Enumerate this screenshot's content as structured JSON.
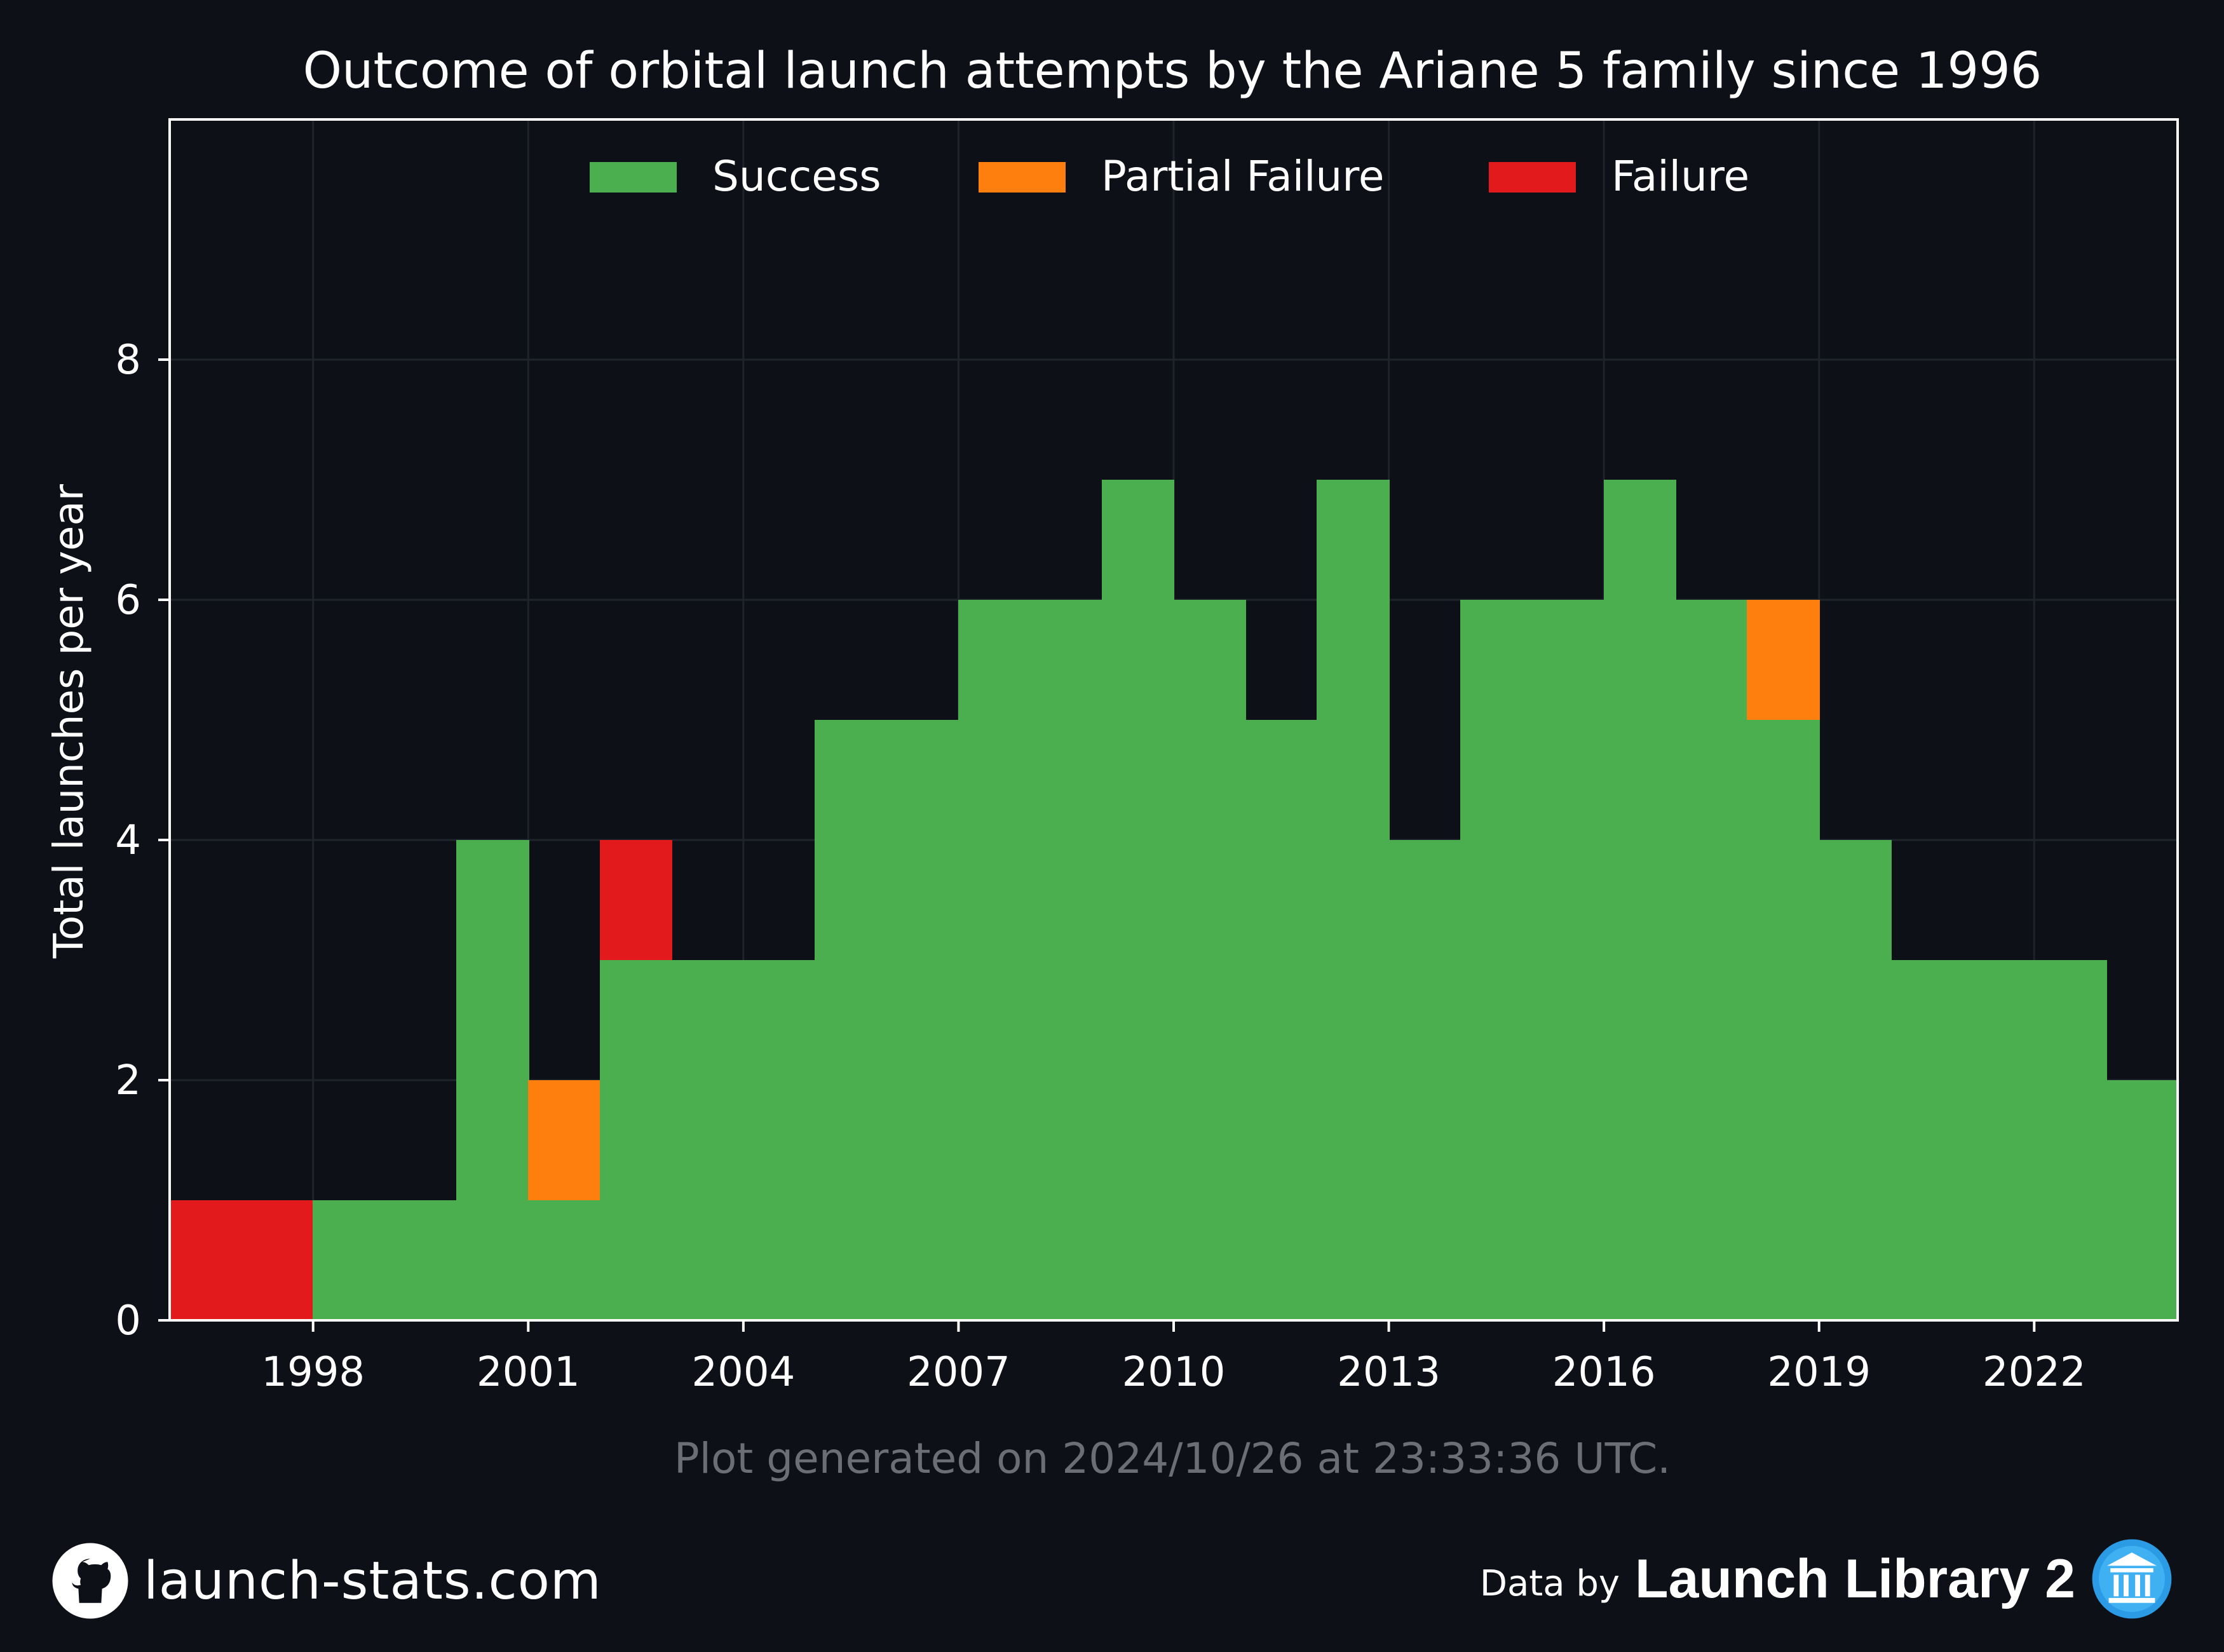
{
  "chart_data": {
    "type": "bar",
    "title": "Outcome of orbital launch attempts by the Ariane 5 family since 1996",
    "xlabel": "",
    "ylabel": "Total launches per year",
    "categories": [
      1996,
      1997,
      1998,
      1999,
      2000,
      2001,
      2002,
      2003,
      2004,
      2005,
      2006,
      2007,
      2008,
      2009,
      2010,
      2011,
      2012,
      2013,
      2014,
      2015,
      2016,
      2017,
      2018,
      2019,
      2020,
      2021,
      2022,
      2023
    ],
    "series": [
      {
        "name": "Success",
        "color": "#4caf4f",
        "values": [
          0,
          0,
          1,
          1,
          4,
          1,
          3,
          3,
          3,
          5,
          5,
          6,
          6,
          7,
          6,
          5,
          7,
          4,
          6,
          6,
          7,
          6,
          5,
          4,
          3,
          3,
          3,
          2
        ]
      },
      {
        "name": "Partial Failure",
        "color": "#ff7f0e",
        "values": [
          0,
          0,
          0,
          0,
          0,
          1,
          0,
          0,
          0,
          0,
          0,
          0,
          0,
          0,
          0,
          0,
          0,
          0,
          0,
          0,
          0,
          0,
          1,
          0,
          0,
          0,
          0,
          0
        ]
      },
      {
        "name": "Failure",
        "color": "#e31a1c",
        "values": [
          1,
          1,
          0,
          0,
          0,
          0,
          1,
          0,
          0,
          0,
          0,
          0,
          0,
          0,
          0,
          0,
          0,
          0,
          0,
          0,
          0,
          0,
          0,
          0,
          0,
          0,
          0,
          0
        ]
      }
    ],
    "stacked": true,
    "xlim": [
      1996,
      2024
    ],
    "ylim": [
      0,
      10
    ],
    "x_ticks": [
      1998,
      2001,
      2004,
      2007,
      2010,
      2013,
      2016,
      2019,
      2022
    ],
    "y_ticks": [
      0,
      2,
      4,
      6,
      8
    ],
    "grid": true,
    "legend_position": "top-center"
  },
  "caption": "Plot generated on 2024/10/26 at 23:33:36 UTC.",
  "footer": {
    "site": "launch-stats.com",
    "site_icon": "github-icon",
    "data_by": "Data by",
    "source": "Launch Library 2",
    "source_icon": "launch-library-icon"
  },
  "colors": {
    "background": "#0d1017",
    "text": "#ffffff",
    "caption": "#6b6e73",
    "grid": "#1f242c"
  }
}
